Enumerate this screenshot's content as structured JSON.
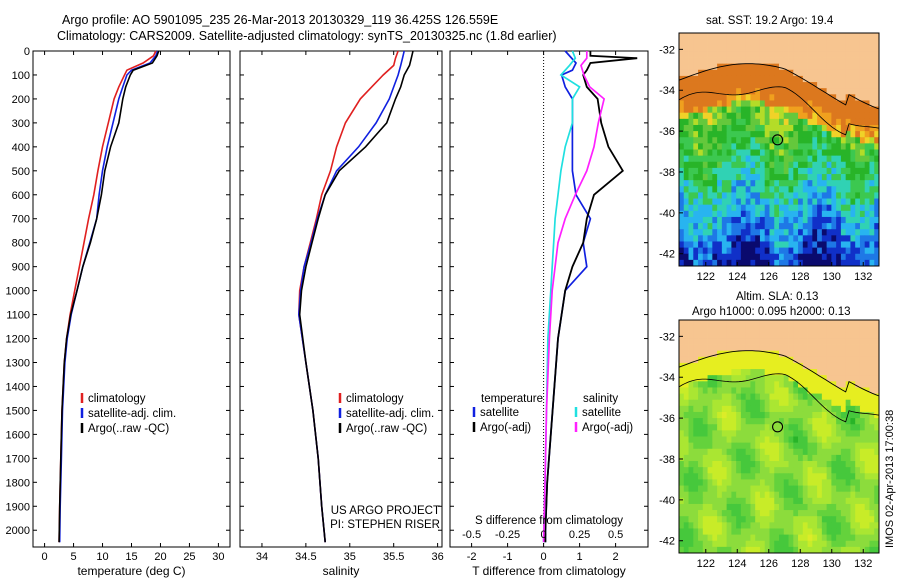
{
  "header": {
    "line1": "Argo profile: AO 5901095_235 26-Mar-2013 20130329_119 36.425S 126.559E",
    "line2": "Climatology: CARS2009. Satellite-adjusted climatology: synTS_20130325.nc (1.8d earlier)"
  },
  "colors": {
    "climatology": "#e02020",
    "satellite": "#1020e0",
    "argo": "#000000",
    "sal_satellite": "#20e0e0",
    "sal_argo": "#ff20ff",
    "land": "#f7c590"
  },
  "depth_ticks": [
    0,
    100,
    200,
    300,
    400,
    500,
    600,
    700,
    800,
    900,
    1000,
    1100,
    1200,
    1300,
    1400,
    1500,
    1600,
    1700,
    1800,
    1900,
    2000
  ],
  "chart_data": [
    {
      "type": "line",
      "name": "temperature",
      "xlabel": "temperature (deg C)",
      "xticks": [
        0,
        5,
        10,
        15,
        20,
        25,
        30
      ],
      "xlim": [
        -2,
        32
      ],
      "ylim": [
        2070,
        0
      ],
      "legend": [
        "climatology",
        "satellite-adj. clim.",
        "Argo(..raw -QC)"
      ],
      "series": [
        {
          "name": "climatology",
          "depth": [
            0,
            20,
            50,
            80,
            100,
            150,
            200,
            300,
            400,
            500,
            600,
            700,
            800,
            900,
            1000,
            1100,
            1200,
            1300,
            1500,
            1700,
            1900,
            2050
          ],
          "values": [
            19.2,
            18.8,
            17,
            14.2,
            13.8,
            12.8,
            12,
            11,
            10,
            9.2,
            8.5,
            7.6,
            6.8,
            6,
            5.2,
            4.4,
            3.8,
            3.4,
            3.0,
            2.8,
            2.6,
            2.5
          ]
        },
        {
          "name": "satellite-adj. clim.",
          "depth": [
            0,
            20,
            50,
            80,
            100,
            150,
            200,
            300,
            400,
            500,
            600,
            700,
            800,
            900,
            1000,
            1100,
            1200,
            1300,
            1500,
            1700,
            1900,
            2050
          ],
          "values": [
            19.5,
            19.2,
            18.2,
            15,
            14.2,
            13.5,
            12.8,
            11.8,
            10.8,
            10,
            9.4,
            9,
            7.8,
            6.6,
            5.6,
            4.6,
            3.9,
            3.5,
            3.1,
            2.9,
            2.7,
            2.6
          ]
        },
        {
          "name": "Argo(..raw -QC)",
          "depth": [
            0,
            20,
            50,
            80,
            100,
            150,
            200,
            300,
            400,
            500,
            600,
            700,
            800,
            900,
            1000,
            1100,
            1200,
            1300,
            1500,
            1700,
            1900,
            2050
          ],
          "values": [
            19.7,
            19.4,
            18.6,
            15.3,
            14.8,
            14,
            13.5,
            12.8,
            11.4,
            10.4,
            9.8,
            9,
            7.9,
            6.6,
            5.6,
            4.5,
            3.8,
            3.4,
            3.0,
            2.8,
            2.6,
            2.5
          ]
        }
      ]
    },
    {
      "type": "line",
      "name": "salinity",
      "xlabel": "salinity",
      "xticks": [
        34,
        34.5,
        35,
        35.5,
        36
      ],
      "xlim": [
        33.75,
        36.05
      ],
      "ylim": [
        2070,
        0
      ],
      "legend": [
        "climatology",
        "satellite-adj. clim.",
        "Argo(..raw -QC)"
      ],
      "annotation": [
        "US ARGO PROJECT",
        "PI: STEPHEN RISER"
      ],
      "series": [
        {
          "name": "climatology",
          "depth": [
            0,
            30,
            60,
            100,
            150,
            200,
            300,
            400,
            500,
            600,
            700,
            800,
            900,
            1000,
            1100,
            1300,
            1500,
            1700,
            1900,
            2050
          ],
          "values": [
            35.55,
            35.52,
            35.5,
            35.38,
            35.25,
            35.12,
            34.95,
            34.85,
            34.78,
            34.68,
            34.62,
            34.55,
            34.48,
            34.43,
            34.42,
            34.5,
            34.58,
            34.64,
            34.68,
            34.72
          ]
        },
        {
          "name": "satellite-adj. clim.",
          "depth": [
            0,
            30,
            60,
            100,
            150,
            200,
            300,
            400,
            500,
            600,
            700,
            800,
            900,
            1000,
            1100,
            1300,
            1500,
            1700,
            1900,
            2050
          ],
          "values": [
            35.62,
            35.6,
            35.58,
            35.55,
            35.5,
            35.45,
            35.3,
            35.1,
            34.85,
            34.72,
            34.63,
            34.56,
            34.48,
            34.44,
            34.42,
            34.5,
            34.58,
            34.64,
            34.68,
            34.72
          ]
        },
        {
          "name": "Argo(..raw -QC)",
          "depth": [
            0,
            30,
            60,
            100,
            150,
            200,
            300,
            400,
            500,
            600,
            700,
            800,
            900,
            1000,
            1100,
            1300,
            1500,
            1700,
            1900,
            2050
          ],
          "values": [
            35.72,
            35.7,
            35.68,
            35.62,
            35.58,
            35.52,
            35.42,
            35.18,
            34.88,
            34.72,
            34.64,
            34.57,
            34.5,
            34.45,
            34.43,
            34.5,
            34.58,
            34.64,
            34.68,
            34.72
          ]
        }
      ]
    },
    {
      "type": "line",
      "name": "differences",
      "xlabel": "T difference from climatology",
      "xlabel2": "S difference from climatology",
      "xticks": [
        -2,
        -1,
        0,
        1,
        2
      ],
      "xticks_s": [
        -0.5,
        -0.25,
        0,
        0.25,
        0.5
      ],
      "xlim": [
        -2.6,
        2.9
      ],
      "ylim": [
        2070,
        0
      ],
      "legend_titles": [
        "temperature",
        "salinity"
      ],
      "legend": [
        "satellite",
        "Argo(-adj)",
        "satellite",
        "Argo(-adj)"
      ],
      "series": [
        {
          "name": "T satellite",
          "depth": [
            0,
            50,
            80,
            100,
            150,
            200,
            300,
            400,
            500,
            600,
            700,
            800,
            900,
            1000,
            1200,
            1400,
            1600,
            1800,
            2000,
            2050
          ],
          "values": [
            0.6,
            0.9,
            0.8,
            0.5,
            0.6,
            0.8,
            0.8,
            0.8,
            0.8,
            0.9,
            1.3,
            1.1,
            1.2,
            0.6,
            0.4,
            0.3,
            0.2,
            0.1,
            0.05,
            0.05
          ]
        },
        {
          "name": "T Argo(-adj)",
          "depth": [
            0,
            20,
            30,
            50,
            80,
            100,
            150,
            200,
            300,
            400,
            500,
            600,
            700,
            800,
            900,
            1000,
            1200,
            1400,
            1600,
            1800,
            2000,
            2050
          ],
          "values": [
            1.3,
            1.3,
            2.6,
            1.3,
            1.2,
            1.1,
            1.2,
            1.5,
            1.6,
            1.8,
            2.2,
            1.4,
            1.2,
            1.1,
            0.8,
            0.6,
            0.4,
            0.3,
            0.2,
            0.1,
            0.05,
            0.05
          ]
        },
        {
          "name": "S satellite",
          "depth": [
            0,
            30,
            60,
            100,
            150,
            200,
            300,
            400,
            500,
            600,
            700,
            800,
            900,
            1000,
            1200,
            1500,
            1800,
            2050
          ],
          "values": [
            0.2,
            0.22,
            0.18,
            0.12,
            0.25,
            0.2,
            0.2,
            0.15,
            0.12,
            0.1,
            0.08,
            0.07,
            0.06,
            0.05,
            0.03,
            0.02,
            0.01,
            0.0
          ]
        },
        {
          "name": "S Argo(-adj)",
          "depth": [
            0,
            30,
            60,
            100,
            150,
            200,
            300,
            400,
            500,
            600,
            700,
            800,
            900,
            1000,
            1200,
            1500,
            1800,
            2050
          ],
          "values": [
            0.3,
            0.3,
            0.26,
            0.28,
            0.32,
            0.42,
            0.38,
            0.35,
            0.3,
            0.22,
            0.15,
            0.1,
            0.08,
            0.06,
            0.04,
            0.02,
            0.01,
            0.0
          ]
        }
      ]
    }
  ],
  "maps": {
    "xticks": [
      122,
      124,
      126,
      128,
      130,
      132
    ],
    "yticks": [
      -32,
      -34,
      -36,
      -38,
      -40,
      -42
    ],
    "xlim": [
      120.3,
      133
    ],
    "ylim": [
      -42.6,
      -31.2
    ],
    "float_position": {
      "lon": 126.559,
      "lat": -36.425
    },
    "sst_title": "sat. SST: 19.2 Argo: 19.4",
    "sla_title1": "Altim. SLA: 0.13",
    "sla_title2": "Argo h1000: 0.095 h2000: 0.13",
    "side_label": "IMOS 02-Apr-2013 17:00:38"
  }
}
